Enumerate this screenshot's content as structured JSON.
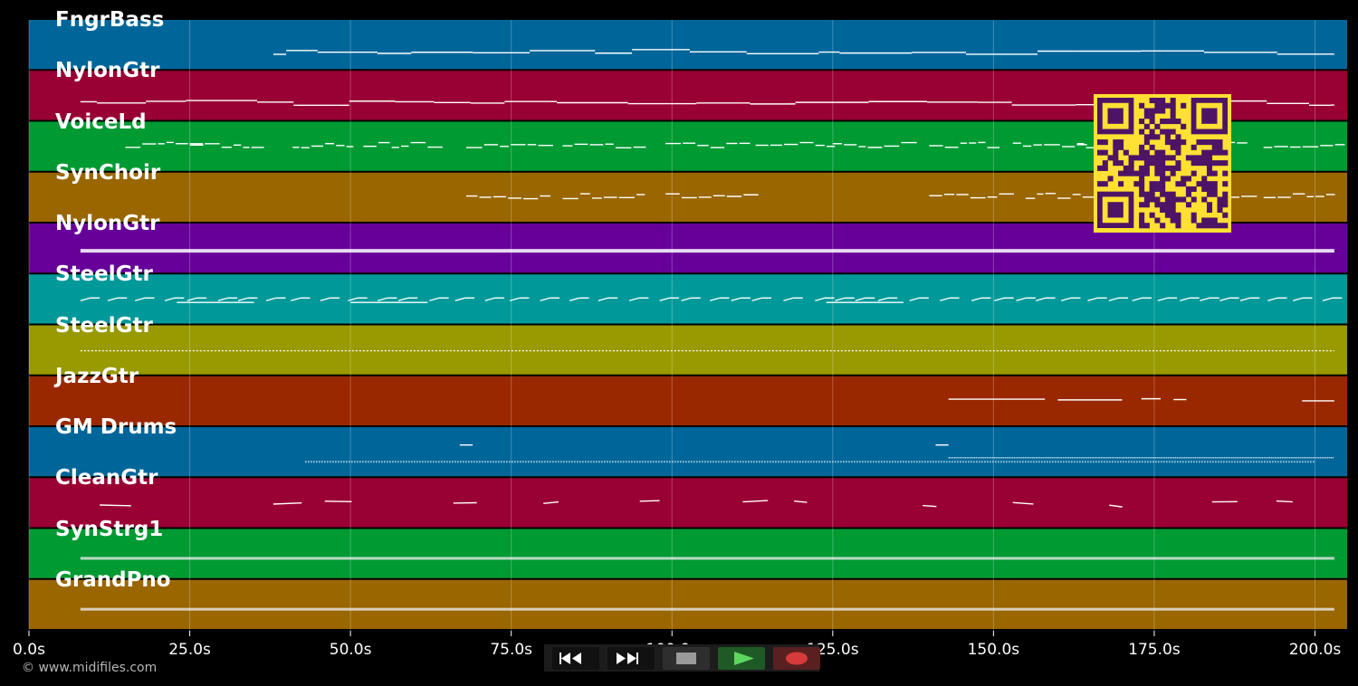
{
  "app": {
    "copyright": "© www.midifiles.com"
  },
  "timeline": {
    "max_seconds": 205,
    "ticks": [
      {
        "t": 0,
        "label": "0.0s"
      },
      {
        "t": 25,
        "label": "25.0s"
      },
      {
        "t": 50,
        "label": "50.0s"
      },
      {
        "t": 75,
        "label": "75.0s"
      },
      {
        "t": 100,
        "label": "100.0s"
      },
      {
        "t": 125,
        "label": "125.0s"
      },
      {
        "t": 150,
        "label": "150.0s"
      },
      {
        "t": 175,
        "label": "175.0s"
      },
      {
        "t": 200,
        "label": "200.0s"
      }
    ]
  },
  "tracks": [
    {
      "name": "FngrBass",
      "color": "#00669a",
      "style": "bass"
    },
    {
      "name": "NylonGtr",
      "color": "#990033",
      "style": "bass"
    },
    {
      "name": "VoiceLd",
      "color": "#009a33",
      "style": "phrase"
    },
    {
      "name": "SynChoir",
      "color": "#996600",
      "style": "phrase"
    },
    {
      "name": "NylonGtr",
      "color": "#660099",
      "style": "dense"
    },
    {
      "name": "SteelGtr",
      "color": "#009999",
      "style": "strum"
    },
    {
      "name": "SteelGtr",
      "color": "#999900",
      "style": "dots"
    },
    {
      "name": "JazzGtr",
      "color": "#992800",
      "style": "sparse"
    },
    {
      "name": "GM Drums",
      "color": "#00669a",
      "style": "drums"
    },
    {
      "name": "CleanGtr",
      "color": "#990033",
      "style": "fragments"
    },
    {
      "name": "SynStrg1",
      "color": "#009a33",
      "style": "sustain"
    },
    {
      "name": "GrandPno",
      "color": "#996600",
      "style": "sustain"
    }
  ],
  "transport": {
    "rewind": {
      "icon": "rewind-icon",
      "color": "#ffffff"
    },
    "fast_forward": {
      "icon": "fast-forward-icon",
      "color": "#ffffff"
    },
    "stop": {
      "icon": "stop-icon",
      "color": "#9a9a9a"
    },
    "play": {
      "icon": "play-icon",
      "color": "#5cd65c"
    },
    "record": {
      "icon": "record-icon",
      "color": "#d63a3a"
    }
  },
  "qr_code": {
    "icon": "qr-code-icon",
    "fg": "#4d1466",
    "bg": "#ffe033"
  }
}
